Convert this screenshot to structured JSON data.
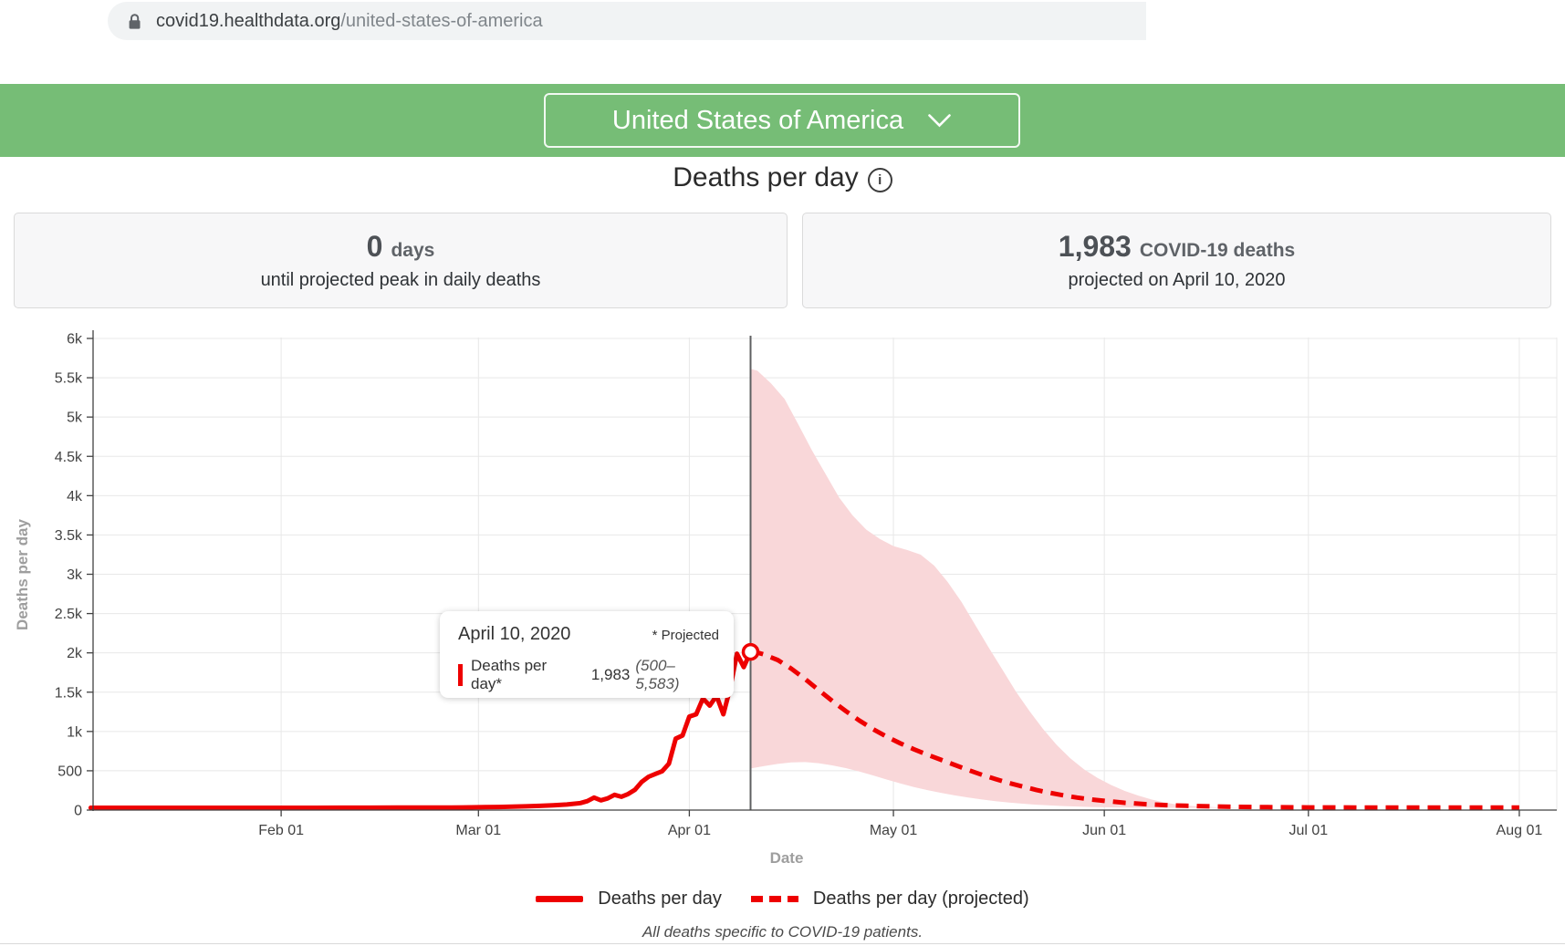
{
  "browser": {
    "url_host": "covid19.healthdata.org",
    "url_path": "/united-states-of-america"
  },
  "header": {
    "region_selector_label": "United States of America"
  },
  "title": {
    "text": "Deaths per day",
    "info_glyph": "i"
  },
  "stat_cards": {
    "left": {
      "value": "0",
      "unit": "days",
      "caption": "until projected peak in daily deaths"
    },
    "right": {
      "value": "1,983",
      "unit": "COVID-19 deaths",
      "caption": "projected on April 10, 2020"
    }
  },
  "tooltip": {
    "date": "April 10, 2020",
    "note": "* Projected",
    "series_label": "Deaths per day*",
    "value": "1,983",
    "range": "(500–5,583)"
  },
  "legend": [
    {
      "label": "Deaths per day",
      "style": "solid"
    },
    {
      "label": "Deaths per day (projected)",
      "style": "dashed"
    }
  ],
  "footnote": "All deaths specific to COVID-19 patients.",
  "colors": {
    "accent_green": "#76bd76",
    "line_red": "#ee0000",
    "band_pink": "#f9d7d9",
    "projection_divider": "#5f6062",
    "gridline": "#e8e8e8",
    "axis": "#424242",
    "axis_title": "#9e9e9e"
  },
  "chart_data": {
    "type": "line",
    "title": "Deaths per day",
    "xlabel": "Date",
    "ylabel": "Deaths per day",
    "ylim": [
      0,
      6000
    ],
    "grid": true,
    "legend_position": "bottom",
    "y_ticks": [
      {
        "v": 0,
        "label": "0"
      },
      {
        "v": 500,
        "label": "500"
      },
      {
        "v": 1000,
        "label": "1k"
      },
      {
        "v": 1500,
        "label": "1.5k"
      },
      {
        "v": 2000,
        "label": "2k"
      },
      {
        "v": 2500,
        "label": "2.5k"
      },
      {
        "v": 3000,
        "label": "3k"
      },
      {
        "v": 3500,
        "label": "3.5k"
      },
      {
        "v": 4000,
        "label": "4k"
      },
      {
        "v": 4500,
        "label": "4.5k"
      },
      {
        "v": 5000,
        "label": "5k"
      },
      {
        "v": 5500,
        "label": "5.5k"
      },
      {
        "v": 6000,
        "label": "6k"
      }
    ],
    "x_ticks": [
      "Feb 01",
      "Mar 01",
      "Apr 01",
      "May 01",
      "Jun 01",
      "Jul 01",
      "Aug 01"
    ],
    "x_tick_days": [
      31,
      60,
      91,
      121,
      152,
      182,
      213
    ],
    "day_origin": "2020-01-01",
    "x_range_days": [
      3,
      213
    ],
    "marker": {
      "day": 100,
      "date": "April 10, 2020",
      "value": 1983,
      "lower": 500,
      "upper": 5583
    },
    "series": [
      {
        "name": "Deaths per day",
        "style": "solid",
        "points": [
          [
            3,
            0
          ],
          [
            8,
            0
          ],
          [
            14,
            0
          ],
          [
            20,
            0
          ],
          [
            26,
            0
          ],
          [
            31,
            0
          ],
          [
            36,
            0
          ],
          [
            40,
            1
          ],
          [
            44,
            1
          ],
          [
            48,
            2
          ],
          [
            52,
            3
          ],
          [
            56,
            4
          ],
          [
            59,
            6
          ],
          [
            61,
            8
          ],
          [
            63,
            11
          ],
          [
            65,
            14
          ],
          [
            67,
            18
          ],
          [
            69,
            24
          ],
          [
            71,
            32
          ],
          [
            73,
            42
          ],
          [
            75,
            60
          ],
          [
            76,
            85
          ],
          [
            77,
            130
          ],
          [
            78,
            95
          ],
          [
            79,
            120
          ],
          [
            80,
            165
          ],
          [
            81,
            140
          ],
          [
            82,
            175
          ],
          [
            83,
            230
          ],
          [
            84,
            330
          ],
          [
            85,
            395
          ],
          [
            86,
            430
          ],
          [
            87,
            465
          ],
          [
            88,
            560
          ],
          [
            89,
            880
          ],
          [
            90,
            920
          ],
          [
            91,
            1160
          ],
          [
            92,
            1190
          ],
          [
            93,
            1390
          ],
          [
            94,
            1300
          ],
          [
            95,
            1425
          ],
          [
            96,
            1190
          ],
          [
            97,
            1520
          ],
          [
            98,
            1960
          ],
          [
            99,
            1790
          ],
          [
            100,
            1983
          ]
        ]
      },
      {
        "name": "Deaths per day (projected)",
        "style": "dashed",
        "points": [
          [
            100,
            1983
          ],
          [
            101,
            1975
          ],
          [
            102,
            1950
          ],
          [
            104,
            1880
          ],
          [
            106,
            1770
          ],
          [
            108,
            1640
          ],
          [
            110,
            1500
          ],
          [
            112,
            1360
          ],
          [
            114,
            1230
          ],
          [
            116,
            1110
          ],
          [
            118,
            1000
          ],
          [
            120,
            905
          ],
          [
            122,
            820
          ],
          [
            124,
            745
          ],
          [
            126,
            675
          ],
          [
            128,
            610
          ],
          [
            130,
            545
          ],
          [
            132,
            480
          ],
          [
            134,
            420
          ],
          [
            136,
            365
          ],
          [
            138,
            315
          ],
          [
            140,
            270
          ],
          [
            142,
            228
          ],
          [
            144,
            190
          ],
          [
            146,
            158
          ],
          [
            148,
            130
          ],
          [
            150,
            107
          ],
          [
            152,
            88
          ],
          [
            155,
            64
          ],
          [
            158,
            47
          ],
          [
            161,
            34
          ],
          [
            164,
            25
          ],
          [
            168,
            17
          ],
          [
            172,
            12
          ],
          [
            176,
            8
          ],
          [
            182,
            5
          ],
          [
            189,
            3
          ],
          [
            197,
            2
          ],
          [
            205,
            2
          ],
          [
            213,
            2
          ]
        ]
      },
      {
        "name": "Uncertainty interval upper",
        "style": "band-upper",
        "points": [
          [
            100,
            5583
          ],
          [
            101,
            5560
          ],
          [
            103,
            5400
          ],
          [
            105,
            5200
          ],
          [
            107,
            4880
          ],
          [
            109,
            4550
          ],
          [
            111,
            4250
          ],
          [
            113,
            3950
          ],
          [
            115,
            3720
          ],
          [
            117,
            3540
          ],
          [
            119,
            3420
          ],
          [
            121,
            3330
          ],
          [
            123,
            3280
          ],
          [
            125,
            3220
          ],
          [
            127,
            3080
          ],
          [
            129,
            2870
          ],
          [
            131,
            2620
          ],
          [
            133,
            2330
          ],
          [
            135,
            2040
          ],
          [
            137,
            1760
          ],
          [
            139,
            1480
          ],
          [
            141,
            1230
          ],
          [
            143,
            1000
          ],
          [
            145,
            800
          ],
          [
            147,
            630
          ],
          [
            149,
            490
          ],
          [
            151,
            380
          ],
          [
            153,
            290
          ],
          [
            155,
            215
          ],
          [
            157,
            155
          ],
          [
            159,
            105
          ],
          [
            161,
            65
          ],
          [
            163,
            38
          ],
          [
            165,
            22
          ],
          [
            168,
            9
          ],
          [
            171,
            3
          ],
          [
            174,
            0
          ]
        ]
      },
      {
        "name": "Uncertainty interval lower",
        "style": "band-lower",
        "points": [
          [
            100,
            500
          ],
          [
            102,
            530
          ],
          [
            104,
            558
          ],
          [
            106,
            578
          ],
          [
            108,
            582
          ],
          [
            110,
            568
          ],
          [
            112,
            540
          ],
          [
            114,
            505
          ],
          [
            116,
            462
          ],
          [
            118,
            412
          ],
          [
            120,
            360
          ],
          [
            122,
            310
          ],
          [
            124,
            265
          ],
          [
            126,
            225
          ],
          [
            128,
            190
          ],
          [
            130,
            158
          ],
          [
            132,
            130
          ],
          [
            134,
            106
          ],
          [
            136,
            85
          ],
          [
            138,
            67
          ],
          [
            140,
            52
          ],
          [
            142,
            40
          ],
          [
            144,
            30
          ],
          [
            146,
            22
          ],
          [
            148,
            16
          ],
          [
            150,
            11
          ],
          [
            153,
            6
          ],
          [
            156,
            3
          ],
          [
            159,
            1
          ],
          [
            162,
            0
          ]
        ]
      }
    ]
  }
}
